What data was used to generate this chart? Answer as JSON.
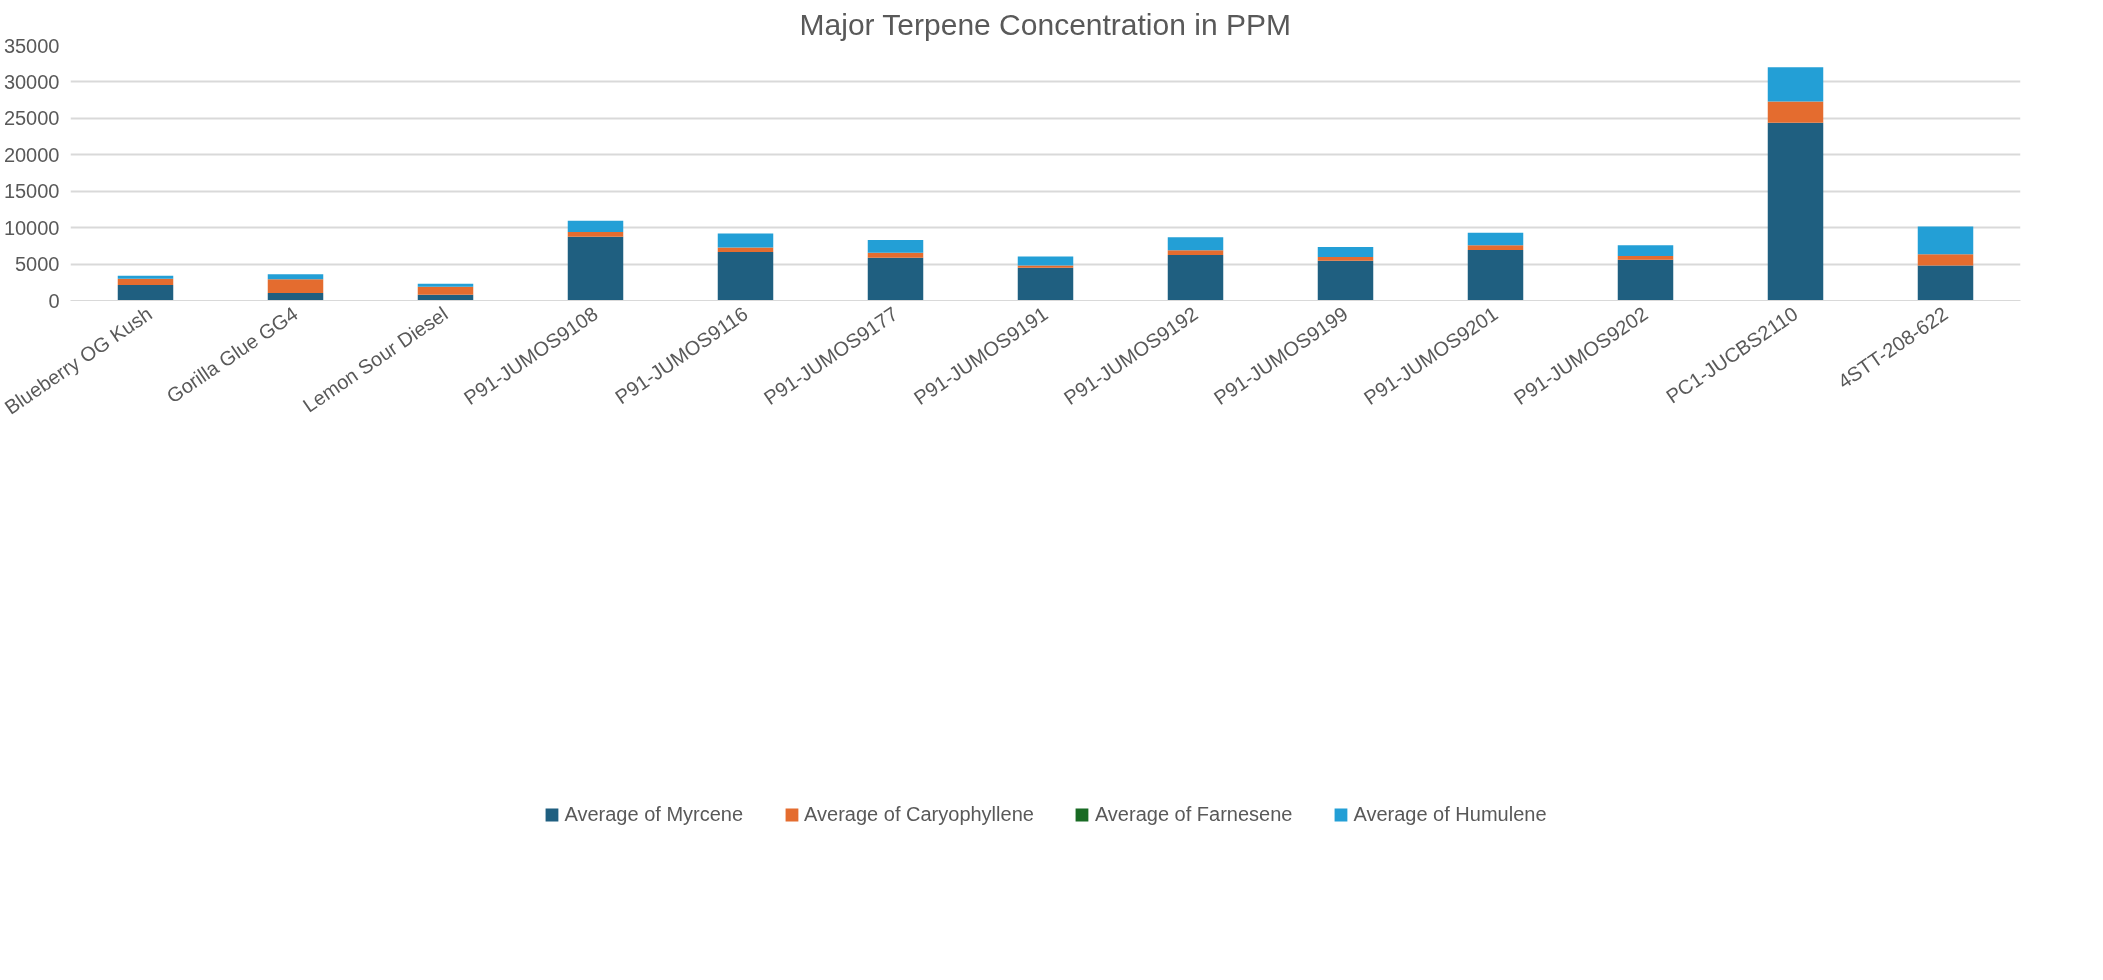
{
  "chart_data": {
    "type": "bar",
    "title": "Major Terpene Concentration in PPM",
    "stacked": true,
    "categories": [
      "Blueberry OG Kush",
      "Gorilla Glue GG4",
      "Lemon Sour Diesel",
      "P91-JUMOS9108",
      "P91-JUMOS9116",
      "P91-JUMOS9177",
      "P91-JUMOS9191",
      "P91-JUMOS9192",
      "P91-JUMOS9199",
      "P91-JUMOS9201",
      "P91-JUMOS9202",
      "PC1-JUCBS2110",
      "4STT-208-622"
    ],
    "series": [
      {
        "name": "Average of Myrcene",
        "color": "#1f5f80",
        "values": [
          2140,
          1040,
          790,
          8760,
          6650,
          5880,
          4500,
          6260,
          5470,
          6940,
          5590,
          24390,
          4810
        ]
      },
      {
        "name": "Average of Caryophyllene",
        "color": "#e46c2f",
        "values": [
          850,
          1890,
          1100,
          630,
          640,
          680,
          290,
          650,
          500,
          650,
          530,
          2910,
          1550
        ]
      },
      {
        "name": "Average of Farnesene",
        "color": "#196b24",
        "values": [
          0,
          0,
          0,
          0,
          0,
          0,
          0,
          0,
          0,
          0,
          0,
          0,
          0
        ]
      },
      {
        "name": "Average of Humulene",
        "color": "#239fd6",
        "values": [
          410,
          660,
          410,
          1570,
          1920,
          1760,
          1240,
          1770,
          1380,
          1700,
          1470,
          4730,
          3790
        ]
      }
    ],
    "ylim": [
      0,
      35000
    ],
    "yticks": [
      0,
      5000,
      10000,
      15000,
      20000,
      25000,
      30000,
      35000
    ],
    "grid": "y",
    "legend": "bottom"
  }
}
